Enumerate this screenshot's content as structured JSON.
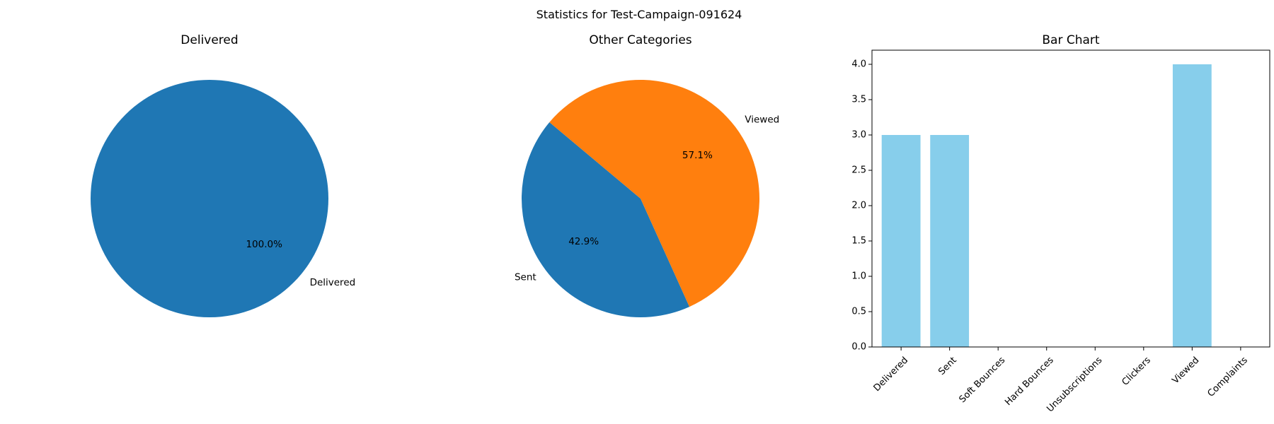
{
  "figure": {
    "suptitle": "Statistics for Test-Campaign-091624"
  },
  "colors": {
    "blue": "#1f77b4",
    "orange": "#ff7f0e",
    "bar": "#87ceeb"
  },
  "chart_data": [
    {
      "type": "pie",
      "title": "Delivered",
      "labels": [
        "Delivered"
      ],
      "values": [
        3
      ],
      "percent_labels": [
        "100.0%"
      ],
      "colors": [
        "#1f77b4"
      ],
      "start_angle_deg": 140
    },
    {
      "type": "pie",
      "title": "Other Categories",
      "labels": [
        "Sent",
        "Viewed"
      ],
      "values": [
        3,
        4
      ],
      "percent_labels": [
        "42.9%",
        "57.1%"
      ],
      "colors": [
        "#1f77b4",
        "#ff7f0e"
      ],
      "start_angle_deg": 140
    },
    {
      "type": "bar",
      "title": "Bar Chart",
      "categories": [
        "Delivered",
        "Sent",
        "Soft Bounces",
        "Hard Bounces",
        "Unsubscriptions",
        "Clickers",
        "Viewed",
        "Complaints"
      ],
      "values": [
        3,
        3,
        0,
        0,
        0,
        0,
        4,
        0
      ],
      "ylim": [
        0,
        4.2
      ],
      "yticks": [
        "0.0",
        "0.5",
        "1.0",
        "1.5",
        "2.0",
        "2.5",
        "3.0",
        "3.5",
        "4.0"
      ],
      "xtick_rotation_deg": 45,
      "color": "#87ceeb",
      "grid": false,
      "xlabel": "",
      "ylabel": ""
    }
  ]
}
